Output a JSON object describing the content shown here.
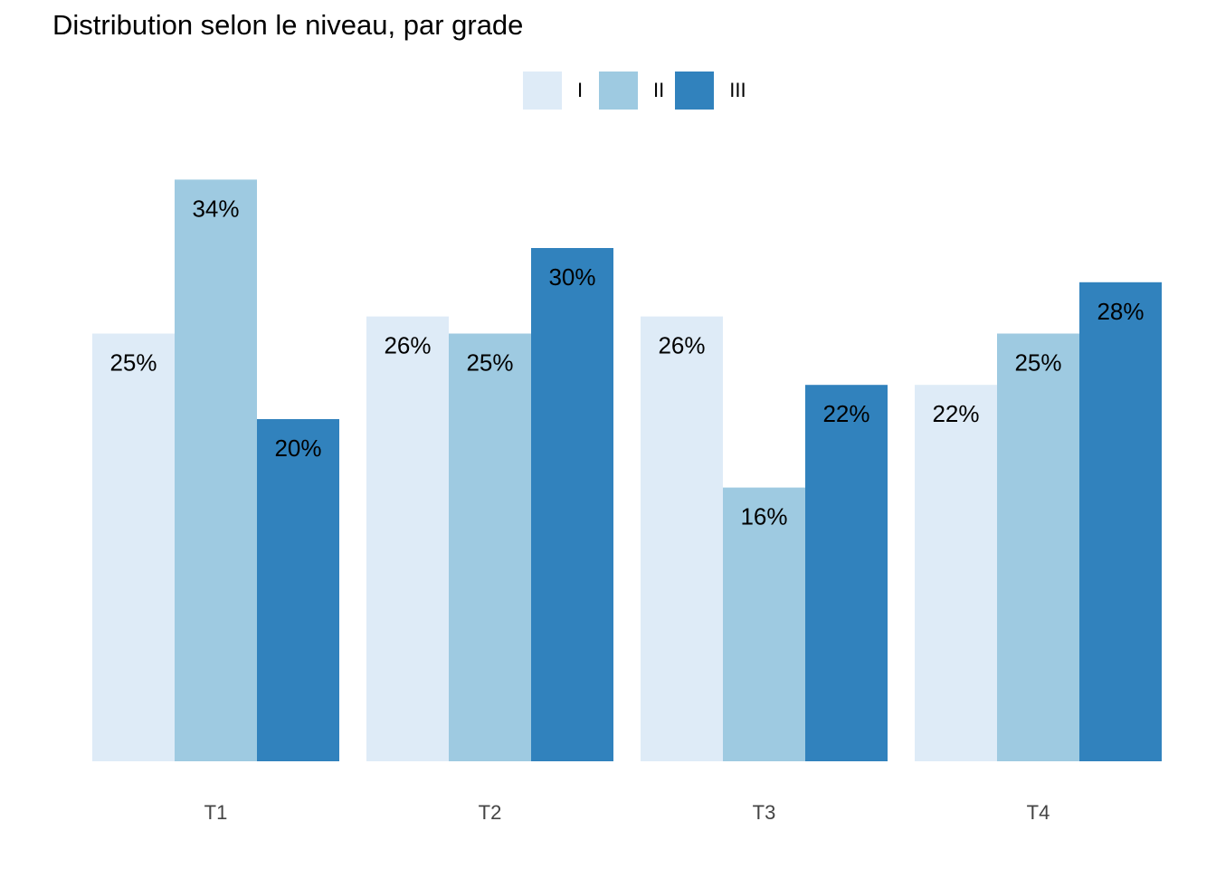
{
  "chart_data": {
    "type": "bar",
    "title": "Distribution selon le niveau, par grade",
    "categories": [
      "T1",
      "T2",
      "T3",
      "T4"
    ],
    "series": [
      {
        "name": "I",
        "color": "#deebf7",
        "values": [
          25,
          26,
          26,
          22
        ],
        "labels": [
          "25%",
          "26%",
          "26%",
          "22%"
        ]
      },
      {
        "name": "II",
        "color": "#9ecae1",
        "values": [
          34,
          25,
          16,
          25
        ],
        "labels": [
          "34%",
          "25%",
          "16%",
          "25%"
        ]
      },
      {
        "name": "III",
        "color": "#3182bd",
        "values": [
          20,
          30,
          22,
          28
        ],
        "labels": [
          "20%",
          "30%",
          "22%",
          "28%"
        ]
      }
    ],
    "xlabel": "",
    "ylabel": "",
    "ylim": [
      0,
      34
    ],
    "grid": false,
    "legend_position": "top"
  }
}
